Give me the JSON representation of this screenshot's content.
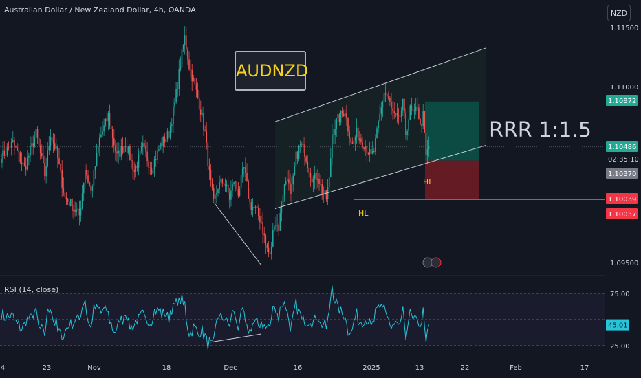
{
  "header": {
    "title": "Australian Dollar / New Zealand Dollar, 4h, OANDA",
    "currency_button": "NZD"
  },
  "colors": {
    "background": "#131722",
    "up": "#26a69a",
    "down": "#ef5350",
    "text": "#d1d4dc",
    "channel": "#c8ccd6",
    "rsi_line": "#26c6da",
    "hl_label": "#f7d219",
    "level": "#f23645",
    "tp_zone": "#0c4a44",
    "sl_zone": "#641b23"
  },
  "annotations": {
    "symbol_box": "AUDNZD",
    "rrr": "RRR 1:1.5",
    "hl_low": "HL",
    "hl_recent": "HL"
  },
  "price_axis": {
    "ticks": [
      "1.11500",
      "1.11000",
      "1.09500"
    ],
    "badges": {
      "tp": "1.10872",
      "current": "1.10486",
      "countdown": "02:35:10",
      "entry": "1.10370",
      "level_a": "1.10039",
      "level_b": "1.10037"
    }
  },
  "rsi_panel": {
    "label": "RSI (14, close)",
    "ticks": [
      "75.00",
      "25.00"
    ],
    "value": "45.01"
  },
  "chart_data": {
    "type": "candlestick",
    "symbol": "AUDNZD",
    "timeframe": "4h",
    "ylim": [
      1.0945,
      1.1152
    ],
    "x_ticks": [
      "4",
      "23",
      "Nov",
      "18",
      "Dec",
      "16",
      "2025",
      "13",
      "22",
      "Feb",
      "17"
    ],
    "anchors": [
      [
        0,
        1.104
      ],
      [
        8,
        1.1052
      ],
      [
        16,
        1.103
      ],
      [
        24,
        1.106
      ],
      [
        30,
        1.1025
      ],
      [
        34,
        1.106
      ],
      [
        38,
        1.1045
      ],
      [
        44,
        1.1005
      ],
      [
        48,
        1.1
      ],
      [
        54,
        1.099
      ],
      [
        58,
        1.103
      ],
      [
        62,
        1.101
      ],
      [
        68,
        1.1055
      ],
      [
        74,
        1.1075
      ],
      [
        80,
        1.104
      ],
      [
        86,
        1.1052
      ],
      [
        92,
        1.1028
      ],
      [
        98,
        1.1048
      ],
      [
        104,
        1.103
      ],
      [
        110,
        1.105
      ],
      [
        116,
        1.106
      ],
      [
        120,
        1.1085
      ],
      [
        124,
        1.112
      ],
      [
        127,
        1.1142
      ],
      [
        130,
        1.1118
      ],
      [
        134,
        1.11
      ],
      [
        138,
        1.108
      ],
      [
        141,
        1.106
      ],
      [
        144,
        1.1025
      ],
      [
        147,
        1.1
      ],
      [
        150,
        1.1015
      ],
      [
        154,
        1.102
      ],
      [
        158,
        1.1005
      ],
      [
        161,
        1.102
      ],
      [
        164,
        1.101
      ],
      [
        168,
        1.103
      ],
      [
        172,
        1.1
      ],
      [
        176,
        1.0995
      ],
      [
        180,
        1.0985
      ],
      [
        183,
        1.0965
      ],
      [
        186,
        1.0955
      ],
      [
        189,
        1.0985
      ],
      [
        192,
        1.098
      ],
      [
        195,
        1.101
      ],
      [
        198,
        1.1025
      ],
      [
        200,
        1.1005
      ],
      [
        202,
        1.102
      ],
      [
        204,
        1.104
      ],
      [
        207,
        1.105
      ],
      [
        210,
        1.1045
      ],
      [
        213,
        1.103
      ],
      [
        216,
        1.102
      ],
      [
        219,
        1.1025
      ],
      [
        222,
        1.101
      ],
      [
        225,
        1.1005
      ],
      [
        227,
        1.102
      ],
      [
        229,
        1.106
      ],
      [
        232,
        1.107
      ],
      [
        235,
        1.1075
      ],
      [
        238,
        1.108
      ],
      [
        240,
        1.1065
      ],
      [
        243,
        1.105
      ],
      [
        246,
        1.106
      ],
      [
        249,
        1.1055
      ],
      [
        252,
        1.105
      ],
      [
        254,
        1.1045
      ],
      [
        256,
        1.104
      ],
      [
        258,
        1.1045
      ],
      [
        260,
        1.106
      ],
      [
        262,
        1.1075
      ],
      [
        265,
        1.1095
      ],
      [
        268,
        1.109
      ],
      [
        270,
        1.108
      ],
      [
        272,
        1.1075
      ],
      [
        275,
        1.107
      ],
      [
        278,
        1.1085
      ],
      [
        280,
        1.106
      ],
      [
        283,
        1.108
      ],
      [
        286,
        1.1075
      ],
      [
        288,
        1.1085
      ],
      [
        290,
        1.1065
      ],
      [
        292,
        1.1075
      ],
      [
        294,
        1.104
      ],
      [
        296,
        1.1049
      ]
    ],
    "channel": {
      "upper": [
        [
          1.0,
          1.107
        ],
        [
          2.0,
          1.1133
        ]
      ],
      "lower": [
        [
          1.0,
          1.0996
        ],
        [
          2.0,
          1.105
        ]
      ]
    },
    "levels": {
      "hl_support": 1.10039,
      "tp": 1.10872,
      "entry": 1.1037,
      "current": 1.10486
    },
    "rsi": {
      "ylim": [
        15,
        95
      ],
      "overbought": 75,
      "oversold": 25,
      "last": 45.01
    }
  }
}
